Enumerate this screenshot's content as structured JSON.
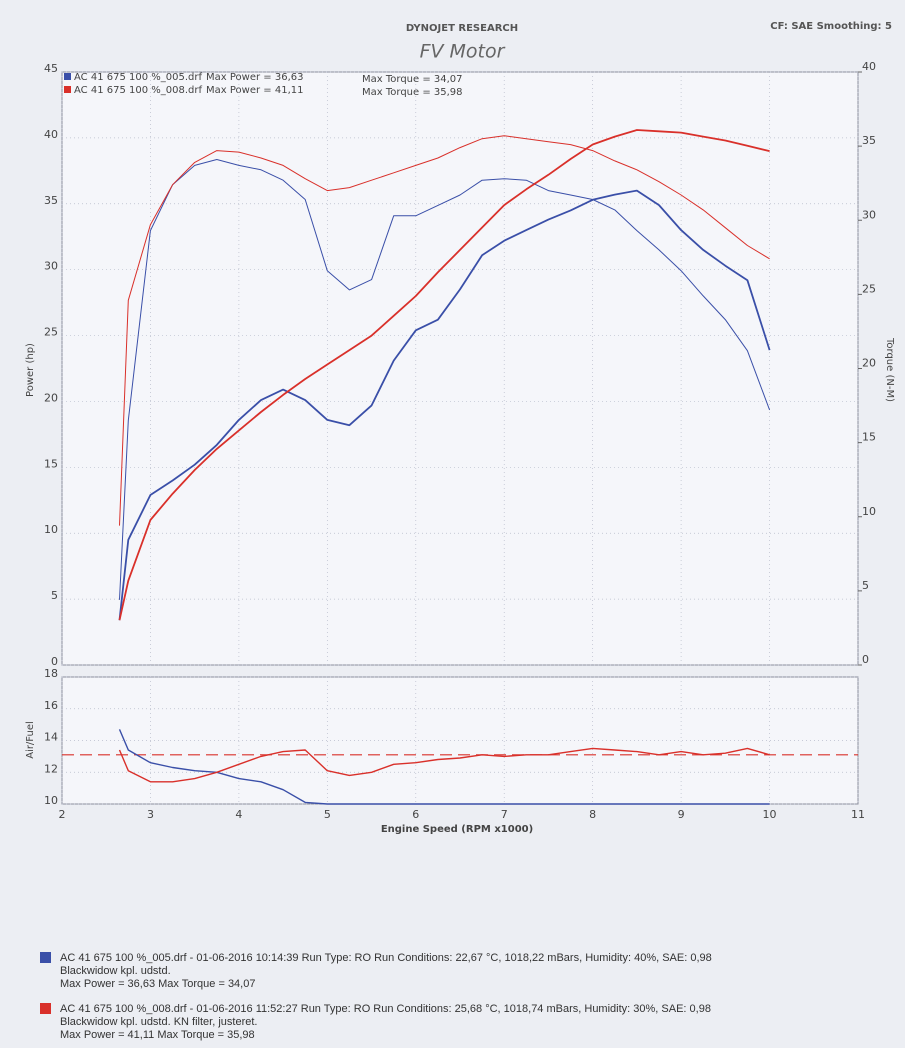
{
  "header": {
    "brand": "DYNOJET RESEARCH",
    "settings": "CF: SAE  Smoothing: 5"
  },
  "runs": [
    {
      "file": "AC 41 675 100 %_005.drf",
      "color": "#3a4fa8",
      "max_power": "Max Power = 36,63",
      "max_torque": "Max Torque = 34,07"
    },
    {
      "file": "AC 41 675 100 %_008.drf",
      "color": "#d9302a",
      "max_power": "Max Power = 41,11",
      "max_torque": "Max Torque = 35,98"
    }
  ],
  "notes": [
    {
      "color": "#3a4fa8",
      "lines": [
        "AC 41 675 100 %_005.drf - 01-06-2016 10:14:39  Run Type: RO  Run Conditions: 22,67 °C, 1018,22 mBars,  Humidity:  40%, SAE: 0,98",
        "Blackwidow kpl. udstd.",
        "Max Power = 36,63  Max Torque = 34,07"
      ]
    },
    {
      "color": "#d9302a",
      "lines": [
        "AC 41 675 100 %_008.drf - 01-06-2016 11:52:27  Run Type: RO  Run Conditions: 25,68 °C, 1018,74 mBars,  Humidity:  30%, SAE: 0,98",
        "Blackwidow kpl. udstd. KN filter, justeret.",
        "Max Power = 41,11  Max Torque = 35,98"
      ]
    }
  ],
  "chart_data": [
    {
      "type": "line",
      "title": "FV Motor",
      "ylabel": "Power (hp)",
      "y2label": "Torque (N-M)",
      "xlim": [
        2,
        11
      ],
      "xticks": [
        2,
        3,
        4,
        5,
        6,
        7,
        8,
        9,
        10,
        11
      ],
      "ylim": [
        0,
        45
      ],
      "yticks": [
        0,
        5,
        10,
        15,
        20,
        25,
        30,
        35,
        40,
        45
      ],
      "y2lim": [
        0,
        40
      ],
      "y2ticks": [
        0,
        5,
        10,
        15,
        20,
        25,
        30,
        35,
        40
      ],
      "grid": true,
      "x": [
        2.65,
        2.75,
        3.0,
        3.25,
        3.5,
        3.75,
        4.0,
        4.25,
        4.5,
        4.75,
        5.0,
        5.25,
        5.5,
        5.75,
        6.0,
        6.25,
        6.5,
        6.75,
        7.0,
        7.25,
        7.5,
        7.75,
        8.0,
        8.25,
        8.5,
        8.75,
        9.0,
        9.25,
        9.5,
        9.75,
        10.0
      ],
      "series": [
        {
          "color": "#3a4fa8",
          "width": 1.8,
          "values": [
            3.4,
            9.5,
            12.9,
            14,
            15.2,
            16.7,
            18.6,
            20.1,
            20.9,
            20.1,
            18.6,
            18.2,
            19.7,
            23.1,
            25.4,
            26.2,
            28.5,
            31.1,
            32.2,
            33,
            33.8,
            34.5,
            35.3,
            35.7,
            36,
            34.9,
            33,
            31.5,
            30.3,
            29.2,
            23.9
          ]
        },
        {
          "color": "#3a4fa8",
          "width": 1,
          "axis": "y2",
          "values": [
            4.4,
            16.5,
            29.3,
            32.4,
            33.7,
            34.1,
            33.7,
            33.4,
            32.7,
            31.4,
            26.6,
            25.3,
            26,
            30.3,
            30.3,
            31,
            31.7,
            32.7,
            32.8,
            32.7,
            32,
            31.7,
            31.4,
            30.7,
            29.3,
            28,
            26.6,
            24.9,
            23.3,
            21.2,
            17.2
          ]
        },
        {
          "color": "#d9302a",
          "width": 1.8,
          "values": [
            3.4,
            6.4,
            11,
            13,
            14.8,
            16.4,
            17.8,
            19.2,
            20.5,
            21.7,
            22.8,
            23.9,
            25,
            26.5,
            28,
            29.8,
            31.5,
            33.2,
            34.9,
            36.1,
            37.2,
            38.4,
            39.5,
            40.1,
            40.6,
            40.5,
            40.4,
            40.1,
            39.8,
            39.4,
            39
          ]
        },
        {
          "color": "#d9302a",
          "width": 1,
          "axis": "y2",
          "values": [
            9.4,
            24.6,
            29.7,
            32.4,
            33.9,
            34.7,
            34.6,
            34.2,
            33.7,
            32.8,
            32,
            32.2,
            32.7,
            33.2,
            33.7,
            34.2,
            34.9,
            35.5,
            35.7,
            35.5,
            35.3,
            35.1,
            34.7,
            34,
            33.4,
            32.6,
            31.7,
            30.7,
            29.5,
            28.3,
            27.4
          ]
        }
      ]
    },
    {
      "type": "line",
      "ylabel": "Air/Fuel",
      "xlabel": "Engine Speed (RPM x1000)",
      "xlim": [
        2,
        11
      ],
      "xticks": [
        2,
        3,
        4,
        5,
        6,
        7,
        8,
        9,
        10,
        11
      ],
      "ylim": [
        10,
        18
      ],
      "yticks": [
        10,
        12,
        14,
        16,
        18
      ],
      "grid": true,
      "reference": {
        "value": 13.1,
        "color": "#d9302a"
      },
      "x": [
        2.65,
        2.75,
        3.0,
        3.25,
        3.5,
        3.75,
        4.0,
        4.25,
        4.5,
        4.75,
        5.0,
        5.25,
        5.5,
        5.75,
        6.0,
        6.25,
        6.5,
        6.75,
        7.0,
        7.25,
        7.5,
        7.75,
        8.0,
        8.25,
        8.5,
        8.75,
        9.0,
        9.25,
        9.5,
        9.75,
        10.0
      ],
      "series": [
        {
          "color": "#3a4fa8",
          "width": 1.4,
          "values": [
            14.7,
            13.4,
            12.6,
            12.3,
            12.1,
            12,
            11.6,
            11.4,
            10.9,
            10.1,
            10,
            10,
            10,
            10,
            10,
            10,
            10,
            10,
            10,
            10,
            10,
            10,
            10,
            10,
            10,
            10,
            10,
            10,
            10,
            10,
            10
          ]
        },
        {
          "color": "#d9302a",
          "width": 1.4,
          "values": [
            13.4,
            12.1,
            11.4,
            11.4,
            11.6,
            12,
            12.5,
            13,
            13.3,
            13.4,
            12.1,
            11.8,
            12,
            12.5,
            12.6,
            12.8,
            12.9,
            13.1,
            13,
            13.1,
            13.1,
            13.3,
            13.5,
            13.4,
            13.3,
            13.1,
            13.3,
            13.1,
            13.2,
            13.5,
            13.1
          ]
        }
      ]
    }
  ]
}
